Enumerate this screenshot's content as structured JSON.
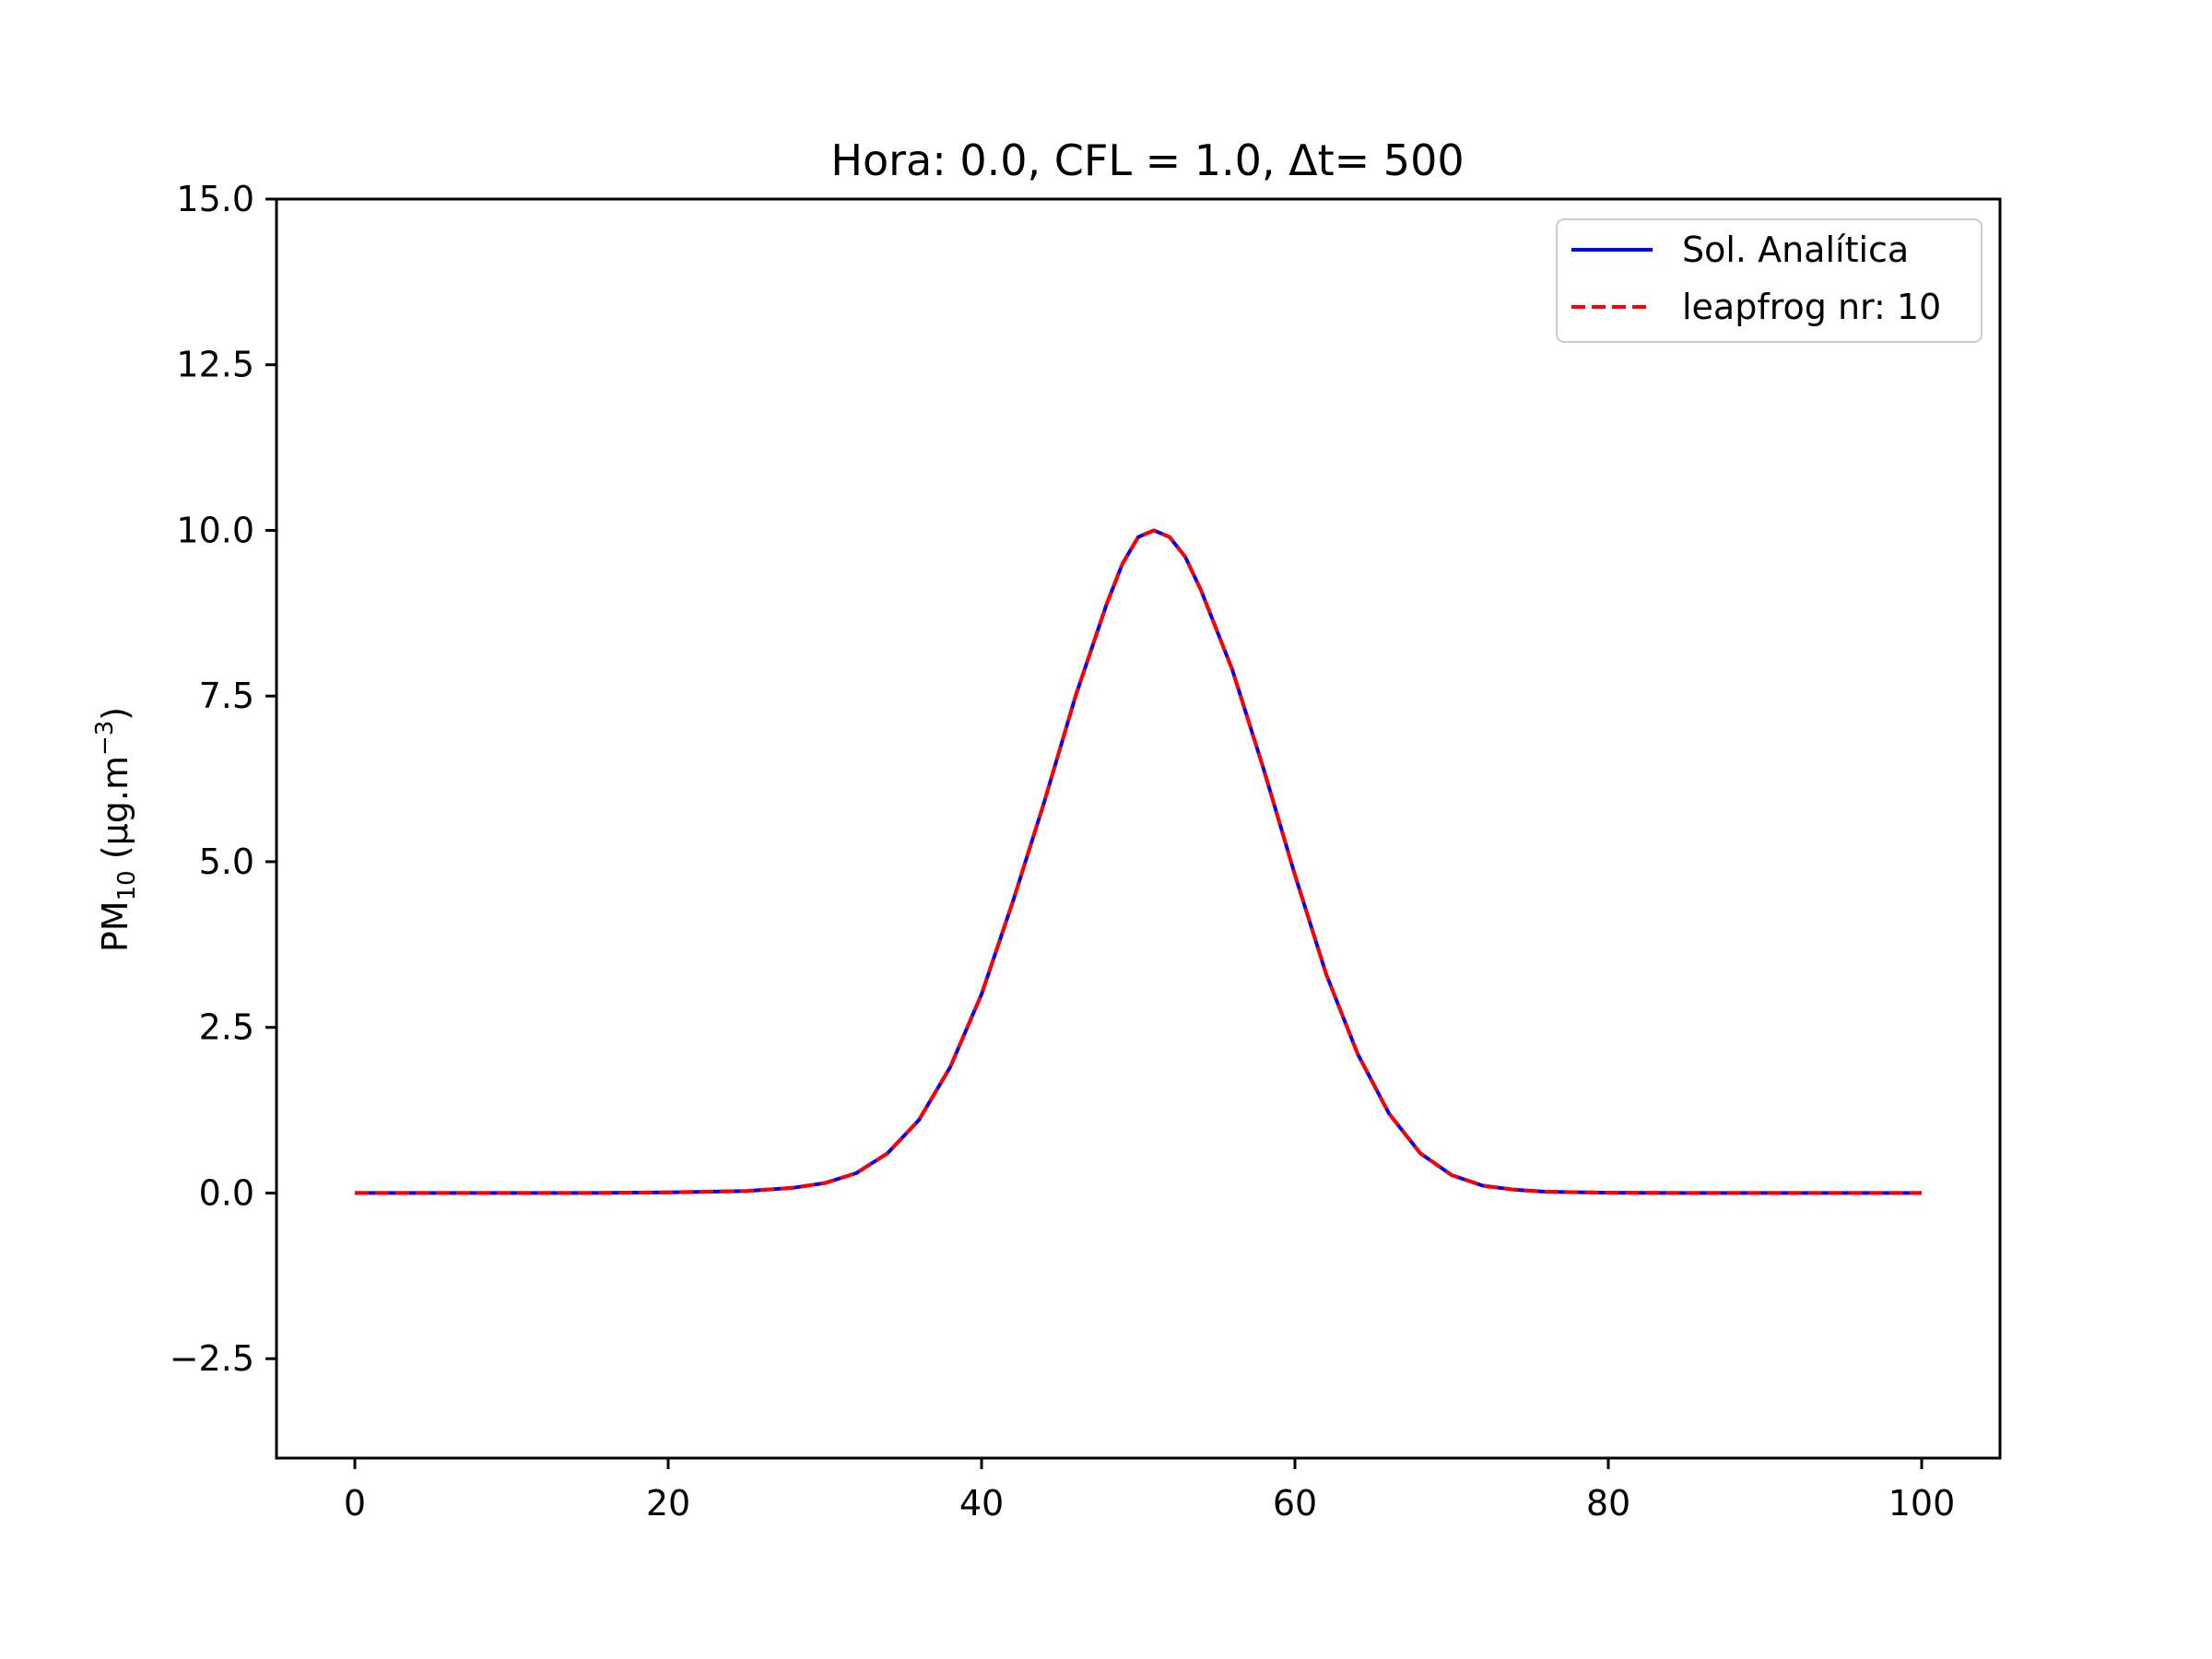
{
  "chart_data": {
    "type": "line",
    "title": "Hora: 0.0, CFL = 1.0, Δt= 500",
    "xlabel": "",
    "ylabel": {
      "prefix": "PM",
      "subscript": "10",
      "middle": " (μg.m",
      "superscript": "−3",
      "suffix": ")"
    },
    "xlim": [
      -5,
      105
    ],
    "ylim": [
      -4,
      15
    ],
    "xticks": [
      0,
      20,
      40,
      60,
      80,
      100
    ],
    "xtick_labels": [
      "0",
      "20",
      "40",
      "60",
      "80",
      "100"
    ],
    "yticks": [
      -2.5,
      0,
      2.5,
      5,
      7.5,
      10,
      12.5,
      15
    ],
    "ytick_labels": [
      "−2.5",
      "0.0",
      "2.5",
      "5.0",
      "7.5",
      "10.0",
      "12.5",
      "15.0"
    ],
    "grid": false,
    "legend_position": "top-right",
    "x": [
      0,
      5,
      10,
      15,
      20,
      25,
      28,
      30,
      32,
      34,
      36,
      38,
      40,
      42,
      44,
      46,
      48,
      49,
      50,
      51,
      52,
      53,
      54,
      56,
      58,
      60,
      62,
      64,
      66,
      68,
      70,
      72,
      74,
      76,
      80,
      85,
      90,
      95,
      100
    ],
    "series": [
      {
        "name": "Sol. Analítica",
        "color": "#0000ff",
        "style": "solid",
        "values": [
          0,
          0,
          0,
          0,
          0.01,
          0.03,
          0.08,
          0.15,
          0.3,
          0.6,
          1.1,
          1.9,
          3.0,
          4.4,
          5.9,
          7.5,
          8.9,
          9.5,
          9.9,
          10.0,
          9.9,
          9.6,
          9.1,
          7.9,
          6.4,
          4.8,
          3.3,
          2.1,
          1.2,
          0.6,
          0.27,
          0.11,
          0.05,
          0.02,
          0.005,
          0,
          0,
          0,
          0
        ]
      },
      {
        "name": "leapfrog nr: 10",
        "color": "#ff0000",
        "style": "dashed",
        "values": [
          0,
          0,
          0,
          0,
          0.01,
          0.03,
          0.08,
          0.15,
          0.3,
          0.6,
          1.1,
          1.9,
          3.0,
          4.4,
          5.9,
          7.5,
          8.9,
          9.5,
          9.9,
          10.0,
          9.9,
          9.6,
          9.1,
          7.9,
          6.4,
          4.8,
          3.3,
          2.1,
          1.2,
          0.6,
          0.27,
          0.11,
          0.05,
          0.02,
          0.005,
          0,
          0,
          0,
          0
        ]
      }
    ]
  }
}
